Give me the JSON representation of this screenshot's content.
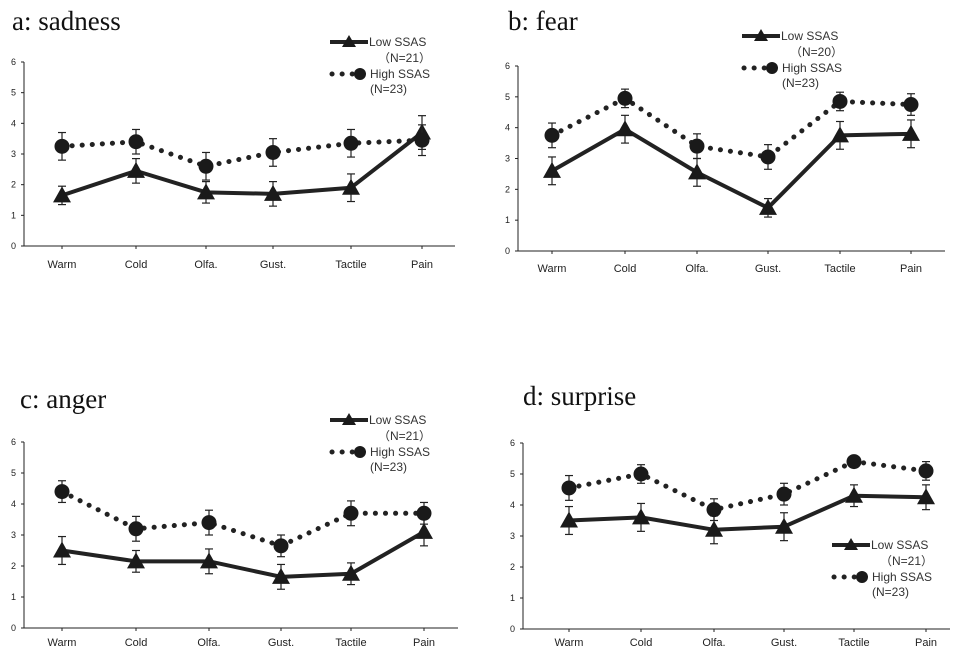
{
  "chart_data": [
    {
      "type": "line",
      "title": "a: sadness",
      "categories": [
        "Warm",
        "Cold",
        "Olfa.",
        "Gust.",
        "Tactile",
        "Pain"
      ],
      "ylim": [
        0,
        6
      ],
      "yticks": [
        "0",
        "1",
        "2",
        "3",
        "4",
        "5",
        "6"
      ],
      "legend_position": "top-right",
      "series": [
        {
          "name": "Low SSAS",
          "n_label": "（N=21）",
          "values": [
            1.65,
            2.45,
            1.75,
            1.7,
            1.9,
            3.7
          ],
          "errors": [
            0.3,
            0.4,
            0.35,
            0.4,
            0.45,
            0.55
          ]
        },
        {
          "name": "High SSAS",
          "n_label": "(N=23)",
          "values": [
            3.25,
            3.4,
            2.6,
            3.05,
            3.35,
            3.45
          ],
          "errors": [
            0.45,
            0.4,
            0.45,
            0.45,
            0.45,
            0.5
          ]
        }
      ]
    },
    {
      "type": "line",
      "title": "b: fear",
      "categories": [
        "Warm",
        "Cold",
        "Olfa.",
        "Gust.",
        "Tactile",
        "Pain"
      ],
      "ylim": [
        0,
        6
      ],
      "yticks": [
        "0",
        "1",
        "2",
        "3",
        "4",
        "5",
        "6"
      ],
      "legend_position": "top-right",
      "series": [
        {
          "name": "Low SSAS",
          "n_label": "（N=20）",
          "values": [
            2.6,
            3.95,
            2.55,
            1.4,
            3.75,
            3.8
          ],
          "errors": [
            0.45,
            0.45,
            0.45,
            0.3,
            0.45,
            0.45
          ]
        },
        {
          "name": "High SSAS",
          "n_label": "(N=23)",
          "values": [
            3.75,
            4.95,
            3.4,
            3.05,
            4.85,
            4.75
          ],
          "errors": [
            0.4,
            0.3,
            0.4,
            0.4,
            0.3,
            0.35
          ]
        }
      ]
    },
    {
      "type": "line",
      "title": "c: anger",
      "categories": [
        "Warm",
        "Cold",
        "Olfa.",
        "Gust.",
        "Tactile",
        "Pain"
      ],
      "ylim": [
        0,
        6
      ],
      "yticks": [
        "0",
        "1",
        "2",
        "3",
        "4",
        "5",
        "6"
      ],
      "legend_position": "top-right",
      "series": [
        {
          "name": "Low SSAS",
          "n_label": "（N=21）",
          "values": [
            2.5,
            2.15,
            2.15,
            1.65,
            1.75,
            3.1
          ],
          "errors": [
            0.45,
            0.35,
            0.4,
            0.4,
            0.35,
            0.45
          ]
        },
        {
          "name": "High SSAS",
          "n_label": "(N=23)",
          "values": [
            4.4,
            3.2,
            3.4,
            2.65,
            3.7,
            3.7
          ],
          "errors": [
            0.35,
            0.4,
            0.4,
            0.35,
            0.4,
            0.35
          ]
        }
      ]
    },
    {
      "type": "line",
      "title": "d: surprise",
      "categories": [
        "Warm",
        "Cold",
        "Olfa.",
        "Gust.",
        "Tactile",
        "Pain"
      ],
      "ylim": [
        0,
        6
      ],
      "yticks": [
        "0",
        "1",
        "2",
        "3",
        "4",
        "5",
        "6"
      ],
      "legend_position": "bottom-right",
      "series": [
        {
          "name": "Low SSAS",
          "n_label": "（N=21）",
          "values": [
            3.5,
            3.6,
            3.2,
            3.3,
            4.3,
            4.25
          ],
          "errors": [
            0.45,
            0.45,
            0.45,
            0.45,
            0.35,
            0.4
          ]
        },
        {
          "name": "High SSAS",
          "n_label": "(N=23)",
          "values": [
            4.55,
            5.0,
            3.85,
            4.35,
            5.4,
            5.1
          ],
          "errors": [
            0.4,
            0.3,
            0.35,
            0.35,
            0.15,
            0.3
          ]
        }
      ]
    }
  ]
}
